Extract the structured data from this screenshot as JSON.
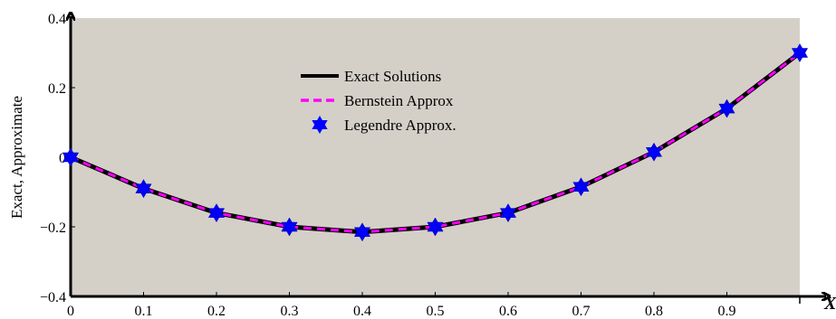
{
  "chart_data": {
    "type": "line",
    "xlabel": "X",
    "ylabel": "Exact, Approximate",
    "xlim": [
      0,
      1
    ],
    "ylim": [
      -0.4,
      0.4
    ],
    "x_ticks": [
      "0",
      "0.1",
      "0.2",
      "0.3",
      "0.4",
      "0.5",
      "0.6",
      "0.7",
      "0.8",
      "0.9"
    ],
    "x_tick_values": [
      0,
      0.1,
      0.2,
      0.3,
      0.4,
      0.5,
      0.6,
      0.7,
      0.8,
      0.9
    ],
    "y_ticks": [
      "0.4",
      "0.2",
      "0",
      "−0.2",
      "−0.4"
    ],
    "y_tick_values": [
      0.4,
      0.2,
      0,
      -0.2,
      -0.4
    ],
    "background_color": "#d4d0c8",
    "legend_position": "top-center",
    "grid": false,
    "x": [
      0,
      0.1,
      0.2,
      0.3,
      0.4,
      0.5,
      0.6,
      0.7,
      0.8,
      0.9,
      1.0
    ],
    "series": [
      {
        "name": "Exact Solutions",
        "style": "solid-line",
        "color": "#000000",
        "values": [
          0,
          -0.09,
          -0.16,
          -0.2,
          -0.215,
          -0.2,
          -0.16,
          -0.085,
          0.015,
          0.14,
          0.3
        ]
      },
      {
        "name": "Bernstein Approx",
        "style": "dashed-line",
        "color": "#ff00ff",
        "values": [
          0,
          -0.09,
          -0.16,
          -0.2,
          -0.215,
          -0.2,
          -0.16,
          -0.085,
          0.015,
          0.14,
          0.3
        ]
      },
      {
        "name": "Legendre Approx.",
        "style": "star-markers",
        "color": "#0000ff",
        "values": [
          0,
          -0.09,
          -0.16,
          -0.2,
          -0.215,
          -0.2,
          -0.16,
          -0.085,
          0.015,
          0.14,
          0.3
        ]
      }
    ]
  }
}
